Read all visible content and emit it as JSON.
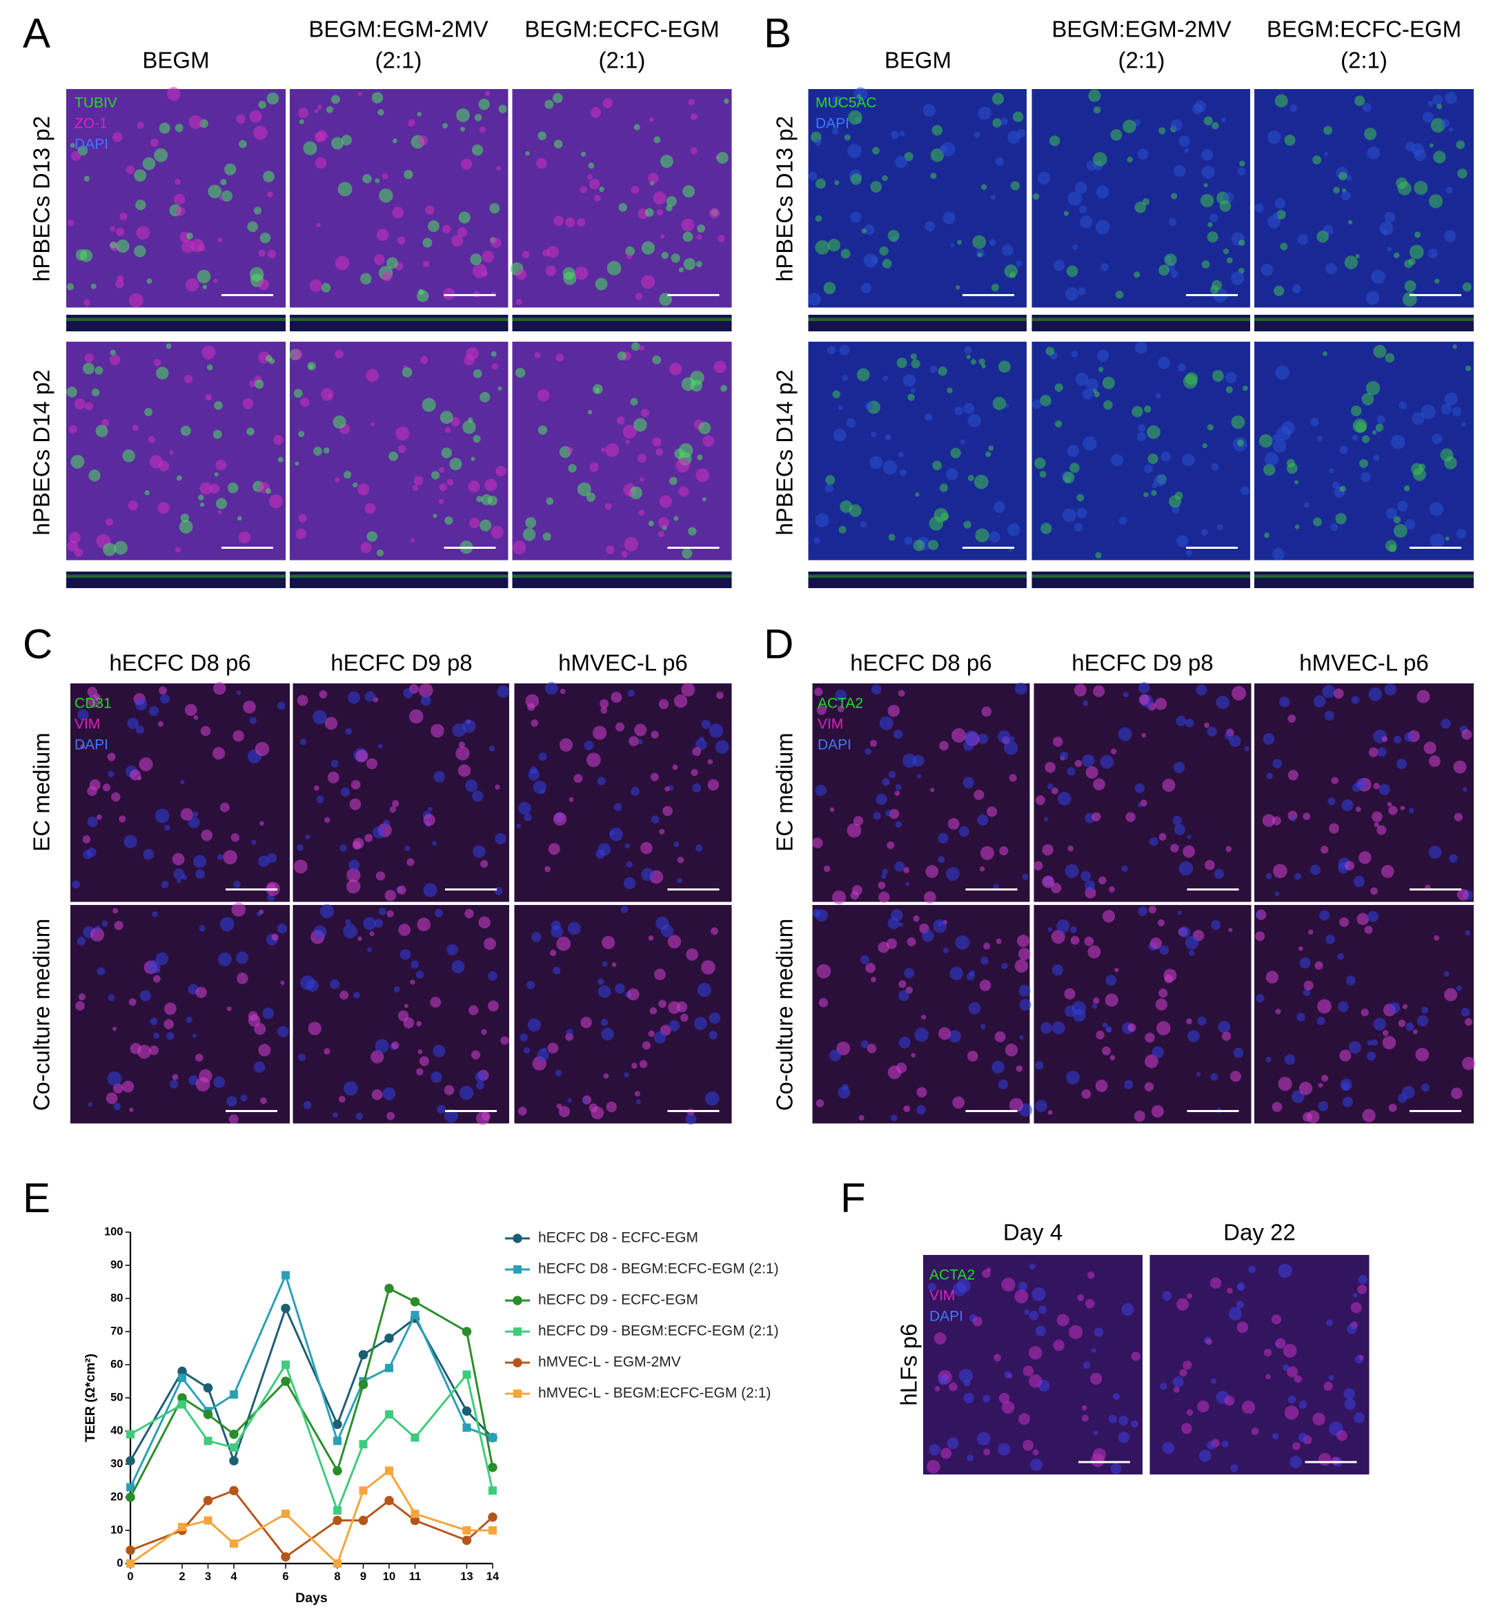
{
  "panels": [
    {
      "letter": "A",
      "columns": [
        [
          "BEGM"
        ],
        [
          "BEGM:EGM-2MV",
          "(2:1)"
        ],
        [
          "BEGM:ECFC-EGM",
          "(2:1)"
        ]
      ],
      "rows": [
        "hPBECs D13 p2",
        "hPBECs D14 p2"
      ],
      "stains": [
        "TUBIV",
        "ZO-1",
        "DAPI"
      ]
    },
    {
      "letter": "B",
      "columns": [
        [
          "BEGM"
        ],
        [
          "BEGM:EGM-2MV",
          "(2:1)"
        ],
        [
          "BEGM:ECFC-EGM",
          "(2:1)"
        ]
      ],
      "rows": [
        "hPBECs D13 p2",
        "hPBECs D14 p2"
      ],
      "stains": [
        "MUC5AC",
        "DAPI"
      ]
    },
    {
      "letter": "C",
      "columns": [
        [
          "hECFC D8 p6"
        ],
        [
          "hECFC D9 p8"
        ],
        [
          "hMVEC-L p6"
        ]
      ],
      "rows": [
        "EC medium",
        "Co-culture medium"
      ],
      "stains": [
        "CD31",
        "VIM",
        "DAPI"
      ]
    },
    {
      "letter": "D",
      "columns": [
        [
          "hECFC D8 p6"
        ],
        [
          "hECFC D9 p8"
        ],
        [
          "hMVEC-L p6"
        ]
      ],
      "rows": [
        "EC medium",
        "Co-culture medium"
      ],
      "stains": [
        "ACTA2",
        "VIM",
        "DAPI"
      ]
    },
    {
      "letter": "E"
    },
    {
      "letter": "F",
      "columns": [
        [
          "Day 4"
        ],
        [
          "Day 22"
        ]
      ],
      "rows": [
        "hLFs p6"
      ],
      "stains": [
        "ACTA2",
        "VIM",
        "DAPI"
      ]
    }
  ],
  "chart_data": {
    "type": "line",
    "x_label": "Days",
    "y_label": "TEER (Ω*cm²)",
    "x": [
      0,
      2,
      3,
      4,
      6,
      8,
      9,
      10,
      11,
      13,
      14
    ],
    "xlim": [
      0,
      14
    ],
    "xticks": [
      0,
      2,
      3,
      4,
      6,
      8,
      9,
      10,
      11,
      13,
      14
    ],
    "ylim": [
      0,
      100
    ],
    "yticks": [
      0,
      10,
      20,
      30,
      40,
      50,
      60,
      70,
      80,
      90,
      100
    ],
    "legend": "right",
    "series": [
      {
        "name": "hECFC D8 - ECFC-EGM",
        "color": "#1d5e73",
        "marker": "circle",
        "values": [
          31,
          58,
          53,
          31,
          77,
          42,
          63,
          68,
          74,
          46,
          38
        ]
      },
      {
        "name": "hECFC D8 - BEGM:ECFC-EGM (2:1)",
        "color": "#2aa0b6",
        "marker": "square",
        "values": [
          23,
          56,
          46,
          51,
          87,
          37,
          55,
          59,
          75,
          41,
          38
        ]
      },
      {
        "name": "hECFC D9 - ECFC-EGM",
        "color": "#2b8c2b",
        "marker": "circle",
        "values": [
          20,
          50,
          45,
          39,
          55,
          28,
          54,
          83,
          79,
          70,
          29
        ]
      },
      {
        "name": "hECFC D9 - BEGM:ECFC-EGM (2:1)",
        "color": "#3dcc7c",
        "marker": "square",
        "values": [
          39,
          48,
          37,
          35,
          60,
          16,
          36,
          45,
          38,
          57,
          22
        ]
      },
      {
        "name": "hMVEC-L - EGM-2MV",
        "color": "#b4561c",
        "marker": "circle",
        "values": [
          4,
          10,
          19,
          22,
          2,
          13,
          13,
          19,
          13,
          7,
          14
        ]
      },
      {
        "name": "hMVEC-L - BEGM:ECFC-EGM (2:1)",
        "color": "#f6a43c",
        "marker": "square",
        "values": [
          0,
          11,
          13,
          6,
          15,
          0,
          22,
          28,
          15,
          10,
          10
        ]
      }
    ]
  }
}
